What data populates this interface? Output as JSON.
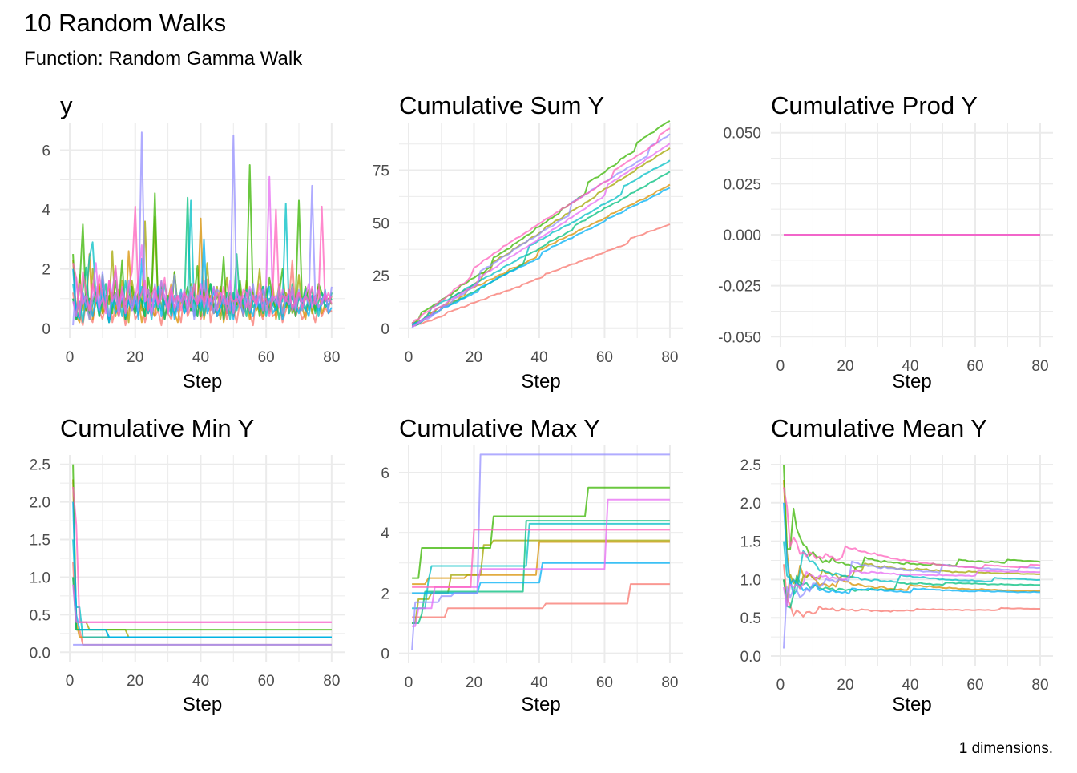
{
  "chart_data": {
    "type": "line",
    "title": "10 Random Walks",
    "subtitle": "Function: Random Gamma Walk",
    "caption": "1 dimensions.",
    "x": {
      "from": 1,
      "to": 80
    },
    "panels": [
      {
        "title": "y",
        "measure": "y",
        "xlabel": "Step",
        "ylim": [
          0,
          6.6
        ],
        "yticks": [
          0,
          2,
          4,
          6
        ],
        "ytick_labels": [
          "0",
          "2",
          "4",
          "6"
        ],
        "xticks": [
          0,
          20,
          40,
          60,
          80
        ],
        "xtick_labels": [
          "0",
          "20",
          "40",
          "60",
          "80"
        ]
      },
      {
        "title": "Cumulative Sum Y",
        "measure": "cumsum",
        "xlabel": "Step",
        "ylim": [
          0,
          93
        ],
        "yticks": [
          0,
          25,
          50,
          75
        ],
        "ytick_labels": [
          "0",
          "25",
          "50",
          "75"
        ],
        "xticks": [
          0,
          20,
          40,
          60,
          80
        ],
        "xtick_labels": [
          "0",
          "20",
          "40",
          "60",
          "80"
        ]
      },
      {
        "title": "Cumulative Prod Y",
        "measure": "cumprod",
        "xlabel": "Step",
        "ylim": [
          -0.05,
          0.05
        ],
        "yticks": [
          -0.05,
          -0.025,
          0,
          0.025,
          0.05
        ],
        "ytick_labels": [
          "-0.050",
          "-0.025",
          "0.000",
          "0.025",
          "0.050"
        ],
        "xticks": [
          0,
          20,
          40,
          60,
          80
        ],
        "xtick_labels": [
          "0",
          "20",
          "40",
          "60",
          "80"
        ]
      },
      {
        "title": "Cumulative Min Y",
        "measure": "cummin",
        "xlabel": "Step",
        "ylim": [
          0,
          2.5
        ],
        "yticks": [
          0,
          0.5,
          1,
          1.5,
          2,
          2.5
        ],
        "ytick_labels": [
          "0.0",
          "0.5",
          "1.0",
          "1.5",
          "2.0",
          "2.5"
        ],
        "xticks": [
          0,
          20,
          40,
          60,
          80
        ],
        "xtick_labels": [
          "0",
          "20",
          "40",
          "60",
          "80"
        ]
      },
      {
        "title": "Cumulative Max Y",
        "measure": "cummax",
        "xlabel": "Step",
        "ylim": [
          0,
          6.6
        ],
        "yticks": [
          0,
          2,
          4,
          6
        ],
        "ytick_labels": [
          "0",
          "2",
          "4",
          "6"
        ],
        "xticks": [
          0,
          20,
          40,
          60,
          80
        ],
        "xtick_labels": [
          "0",
          "20",
          "40",
          "60",
          "80"
        ]
      },
      {
        "title": "Cumulative Mean Y",
        "measure": "cummean",
        "xlabel": "Step",
        "ylim": [
          0,
          2.5
        ],
        "yticks": [
          0,
          0.5,
          1,
          1.5,
          2,
          2.5
        ],
        "ytick_labels": [
          "0.0",
          "0.5",
          "1.0",
          "1.5",
          "2.0",
          "2.5"
        ],
        "xticks": [
          0,
          20,
          40,
          60,
          80
        ],
        "xtick_labels": [
          "0",
          "20",
          "40",
          "60",
          "80"
        ]
      }
    ],
    "grid": true,
    "legend": "none",
    "series": [
      {
        "color": "#F8766D",
        "y": [
          1.2,
          0.3,
          0.5,
          0.1,
          0.9,
          0.4,
          0.2,
          1.0,
          0.6,
          0.3,
          0.8,
          1.5,
          0.2,
          0.7,
          0.4,
          0.9,
          0.1,
          0.6,
          1.1,
          0.3,
          0.5,
          0.8,
          0.2,
          0.7,
          1.0,
          0.4,
          0.6,
          0.1,
          0.9,
          0.5,
          0.3,
          0.8,
          0.6,
          0.2,
          1.2,
          0.4,
          0.7,
          0.5,
          0.9,
          0.3,
          0.6,
          1.65,
          0.2,
          0.8,
          0.4,
          0.5,
          1.0,
          0.3,
          0.7,
          0.6,
          0.2,
          0.9,
          0.4,
          0.8,
          0.5,
          0.1,
          1.1,
          0.6,
          0.3,
          0.7,
          0.9,
          0.4,
          0.5,
          0.8,
          0.2,
          0.6,
          1.0,
          2.3,
          0.4,
          0.7,
          0.3,
          0.5,
          0.9,
          0.6,
          0.2,
          0.8,
          0.4,
          0.7,
          0.5,
          0.6
        ]
      },
      {
        "color": "#D89000",
        "y": [
          2.3,
          0.4,
          0.2,
          1.1,
          0.6,
          2.5,
          0.3,
          0.9,
          1.4,
          0.5,
          0.7,
          0.2,
          1.2,
          0.8,
          0.4,
          1.6,
          0.3,
          2.6,
          0.9,
          0.5,
          1.0,
          0.2,
          0.7,
          1.3,
          0.6,
          0.4,
          1.1,
          0.8,
          0.3,
          0.9,
          1.5,
          0.5,
          0.2,
          1.0,
          0.7,
          0.6,
          1.2,
          0.4,
          0.8,
          3.7,
          0.3,
          0.9,
          1.1,
          0.5,
          0.6,
          1.4,
          0.2,
          0.8,
          1.0,
          0.4,
          0.7,
          1.3,
          0.5,
          0.9,
          0.3,
          1.2,
          0.6,
          0.8,
          0.4,
          1.0,
          0.7,
          1.5,
          0.3,
          0.9,
          0.6,
          1.1,
          0.5,
          0.8,
          0.4,
          1.2,
          0.7,
          0.3,
          1.0,
          0.9,
          0.6,
          1.4,
          0.5,
          0.8,
          0.7,
          1.1
        ]
      },
      {
        "color": "#A3A500",
        "y": [
          1.0,
          0.4,
          1.8,
          0.6,
          1.2,
          0.3,
          2.0,
          0.9,
          1.5,
          0.5,
          1.1,
          0.8,
          2.6,
          0.4,
          1.3,
          0.7,
          1.0,
          0.2,
          1.6,
          0.9,
          1.2,
          0.6,
          3.6,
          0.5,
          1.1,
          3.75,
          0.8,
          1.4,
          0.3,
          1.0,
          0.7,
          1.9,
          0.6,
          1.2,
          0.9,
          0.5,
          1.5,
          1.1,
          0.4,
          1.3,
          0.8,
          2.2,
          0.6,
          1.0,
          1.4,
          0.3,
          0.9,
          1.7,
          0.5,
          1.2,
          0.8,
          1.0,
          0.4,
          1.6,
          0.7,
          1.1,
          0.9,
          2.0,
          0.6,
          1.3,
          0.5,
          1.0,
          0.8,
          1.5,
          0.4,
          1.2,
          0.9,
          1.1,
          0.7,
          1.8,
          0.6,
          1.0,
          1.3,
          0.5,
          0.9,
          1.4,
          0.8,
          1.1,
          0.7,
          1.2
        ]
      },
      {
        "color": "#39B600",
        "y": [
          2.5,
          0.3,
          1.4,
          3.5,
          0.6,
          1.0,
          0.9,
          1.2,
          0.4,
          1.8,
          0.7,
          1.1,
          0.5,
          1.6,
          0.8,
          2.3,
          0.3,
          1.0,
          1.4,
          0.6,
          1.2,
          0.9,
          0.4,
          1.7,
          1.0,
          4.55,
          0.6,
          1.3,
          0.8,
          1.1,
          0.5,
          1.9,
          0.7,
          1.2,
          0.9,
          1.4,
          0.6,
          1.0,
          2.1,
          0.4,
          1.3,
          0.8,
          1.5,
          0.7,
          1.1,
          0.9,
          2.4,
          0.5,
          1.2,
          1.0,
          0.8,
          1.6,
          0.6,
          1.3,
          5.5,
          0.9,
          1.1,
          0.4,
          1.4,
          0.8,
          1.7,
          1.0,
          0.6,
          1.2,
          2.0,
          0.7,
          1.3,
          0.5,
          1.0,
          4.3,
          0.8,
          1.4,
          0.9,
          1.1,
          0.6,
          1.5,
          1.2,
          0.9,
          1.0,
          0.8
        ]
      },
      {
        "color": "#00BF7D",
        "y": [
          1.0,
          0.3,
          0.6,
          1.3,
          2.05,
          0.5,
          0.8,
          1.1,
          0.4,
          0.9,
          1.5,
          0.2,
          0.7,
          1.2,
          0.6,
          1.0,
          0.3,
          1.4,
          0.8,
          0.5,
          1.1,
          0.9,
          0.4,
          1.3,
          0.7,
          1.0,
          0.6,
          1.6,
          0.3,
          0.9,
          1.2,
          0.5,
          0.8,
          1.1,
          0.7,
          4.4,
          0.6,
          1.0,
          0.4,
          1.3,
          0.8,
          0.9,
          1.5,
          0.5,
          0.7,
          1.1,
          0.3,
          1.2,
          0.9,
          0.6,
          2.5,
          0.8,
          1.0,
          0.4,
          1.3,
          0.7,
          0.9,
          1.1,
          0.5,
          1.4,
          0.6,
          0.8,
          1.0,
          0.3,
          1.2,
          0.9,
          0.7,
          1.5,
          0.4,
          1.1,
          0.8,
          0.6,
          1.0,
          1.3,
          0.5,
          0.9,
          1.2,
          0.7,
          0.8,
          1.0
        ]
      },
      {
        "color": "#00BFC4",
        "y": [
          1.5,
          0.6,
          0.9,
          0.2,
          1.1,
          2.4,
          2.9,
          1.0,
          0.5,
          1.3,
          0.7,
          0.3,
          1.2,
          0.8,
          1.0,
          0.4,
          1.6,
          0.9,
          0.6,
          1.1,
          0.5,
          1.4,
          0.7,
          1.0,
          0.3,
          1.2,
          0.8,
          0.6,
          1.5,
          0.9,
          0.4,
          1.1,
          0.7,
          1.3,
          0.5,
          1.0,
          4.3,
          0.6,
          0.9,
          1.2,
          0.4,
          1.0,
          0.8,
          1.4,
          0.5,
          0.7,
          1.1,
          0.9,
          0.3,
          1.2,
          0.6,
          1.0,
          0.8,
          1.3,
          0.5,
          0.9,
          1.1,
          0.7,
          1.4,
          0.4,
          1.0,
          0.8,
          0.6,
          1.2,
          0.9,
          4.2,
          0.5,
          1.1,
          0.7,
          1.0,
          0.8,
          1.3,
          0.6,
          0.9,
          1.1,
          0.4,
          1.0,
          0.8,
          0.7,
          1.2
        ]
      },
      {
        "color": "#00B0F6",
        "y": [
          2.0,
          0.5,
          0.3,
          1.2,
          0.7,
          0.9,
          0.4,
          1.1,
          0.6,
          1.6,
          0.8,
          0.2,
          1.0,
          0.5,
          0.7,
          1.3,
          0.4,
          0.9,
          0.6,
          1.1,
          0.3,
          2.35,
          0.8,
          0.5,
          1.0,
          0.7,
          1.4,
          0.4,
          0.9,
          0.6,
          1.2,
          0.3,
          0.8,
          1.0,
          0.5,
          0.7,
          1.1,
          0.4,
          0.9,
          0.6,
          3.0,
          0.5,
          0.8,
          1.3,
          0.4,
          0.7,
          1.0,
          0.6,
          0.9,
          0.3,
          1.2,
          0.8,
          0.5,
          1.0,
          0.7,
          0.4,
          1.1,
          0.6,
          0.9,
          0.8,
          1.4,
          0.5,
          0.7,
          1.0,
          0.3,
          0.9,
          1.2,
          0.6,
          0.8,
          0.5,
          1.0,
          0.7,
          0.4,
          1.1,
          0.9,
          0.6,
          0.8,
          1.3,
          0.5,
          0.7
        ]
      },
      {
        "color": "#9590FF",
        "y": [
          0.1,
          1.7,
          0.5,
          1.2,
          0.8,
          0.3,
          1.0,
          1.4,
          0.6,
          1.9,
          0.9,
          0.4,
          1.3,
          2.0,
          0.7,
          1.1,
          0.5,
          1.6,
          0.8,
          1.2,
          0.6,
          6.6,
          0.9,
          1.0,
          0.4,
          1.5,
          0.7,
          1.3,
          1.1,
          0.5,
          0.9,
          1.8,
          0.6,
          1.2,
          1.0,
          0.8,
          1.4,
          0.3,
          1.1,
          0.9,
          1.6,
          0.7,
          1.0,
          0.5,
          1.3,
          1.2,
          0.8,
          1.0,
          0.6,
          6.5,
          0.9,
          1.1,
          0.4,
          1.2,
          0.8,
          1.5,
          0.7,
          1.0,
          1.3,
          0.6,
          0.9,
          1.1,
          0.8,
          1.4,
          0.5,
          1.0,
          1.2,
          0.7,
          0.9,
          1.3,
          0.6,
          1.1,
          0.8,
          4.8,
          1.0,
          0.7,
          0.9,
          1.2,
          0.6,
          1.4
        ]
      },
      {
        "color": "#E76BF3",
        "y": [
          0.9,
          0.4,
          1.5,
          0.8,
          1.1,
          0.6,
          1.3,
          2.2,
          0.7,
          1.0,
          0.5,
          1.6,
          0.9,
          1.2,
          0.4,
          1.4,
          0.8,
          1.1,
          0.6,
          1.0,
          1.7,
          2.8,
          0.9,
          1.3,
          0.5,
          1.2,
          0.8,
          1.6,
          1.0,
          0.7,
          1.4,
          0.6,
          1.1,
          0.9,
          1.3,
          0.5,
          1.2,
          1.0,
          0.8,
          1.5,
          0.7,
          1.1,
          0.9,
          1.4,
          0.6,
          1.2,
          1.0,
          0.8,
          1.6,
          0.5,
          1.3,
          0.9,
          1.1,
          0.7,
          1.4,
          1.0,
          0.8,
          1.2,
          0.6,
          1.5,
          5.1,
          0.9,
          1.1,
          0.7,
          1.3,
          1.0,
          0.8,
          1.4,
          0.6,
          1.2,
          0.9,
          1.1,
          1.5,
          0.7,
          1.0,
          1.3,
          0.8,
          1.2,
          0.9,
          1.1
        ]
      },
      {
        "color": "#FF62BC",
        "y": [
          2.2,
          1.7,
          0.4,
          1.9,
          1.2,
          0.6,
          1.5,
          0.9,
          1.8,
          1.1,
          0.7,
          1.6,
          1.0,
          2.1,
          0.8,
          1.3,
          0.5,
          1.4,
          1.9,
          4.1,
          0.9,
          1.2,
          1.6,
          0.6,
          1.1,
          1.4,
          0.8,
          1.0,
          1.7,
          0.5,
          1.3,
          0.9,
          1.1,
          0.6,
          1.2,
          1.0,
          0.7,
          1.5,
          0.8,
          1.1,
          0.9,
          1.3,
          0.6,
          1.0,
          1.2,
          0.8,
          1.4,
          0.5,
          1.1,
          0.9,
          1.0,
          0.7,
          1.3,
          1.2,
          0.6,
          1.1,
          0.8,
          1.5,
          0.9,
          1.0,
          0.4,
          1.2,
          4.0,
          0.8,
          1.1,
          0.9,
          1.3,
          0.6,
          1.0,
          1.2,
          0.7,
          1.1,
          0.9,
          1.4,
          0.8,
          1.0,
          4.1,
          0.9,
          1.2,
          0.8
        ]
      }
    ]
  }
}
